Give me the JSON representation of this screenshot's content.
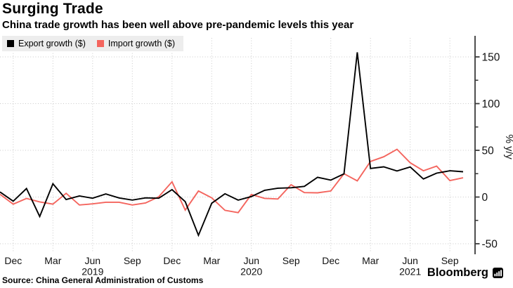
{
  "header": {
    "title": "Surging Trade",
    "subtitle": "China trade growth has been well above pre-pandemic levels this year"
  },
  "legend": [
    {
      "label": "Export growth ($)",
      "color": "#000000"
    },
    {
      "label": "Import growth ($)",
      "color": "#f4655e"
    }
  ],
  "source": {
    "text": "Source: China General Administration of Customs"
  },
  "branding": {
    "name": "Bloomberg",
    "icon": "bloomberg-bars-icon"
  },
  "chart_data": {
    "type": "line",
    "title": "Surging Trade",
    "ylabel": "% y/y",
    "x": [
      "Nov 2018",
      "Dec 2018",
      "Jan 2019",
      "Feb 2019",
      "Mar 2019",
      "Apr 2019",
      "May 2019",
      "Jun 2019",
      "Jul 2019",
      "Aug 2019",
      "Sep 2019",
      "Oct 2019",
      "Nov 2019",
      "Dec 2019",
      "Jan 2020",
      "Feb 2020",
      "Mar 2020",
      "Apr 2020",
      "May 2020",
      "Jun 2020",
      "Jul 2020",
      "Aug 2020",
      "Sep 2020",
      "Oct 2020",
      "Nov 2020",
      "Dec 2020",
      "Jan 2021",
      "Feb 2021",
      "Mar 2021",
      "Apr 2021",
      "May 2021",
      "Jun 2021",
      "Jul 2021",
      "Aug 2021",
      "Sep 2021",
      "Oct 2021"
    ],
    "series": [
      {
        "name": "Export growth ($)",
        "color": "#000000",
        "values": [
          5.4,
          -4.4,
          9.1,
          -20.8,
          14.2,
          -2.7,
          1.1,
          -1.3,
          3.3,
          -1.0,
          -3.2,
          -0.9,
          -1.3,
          7.9,
          -5.0,
          -41.0,
          -6.6,
          3.5,
          -3.3,
          0.5,
          7.2,
          9.5,
          9.9,
          11.4,
          21.1,
          18.1,
          24.8,
          154.9,
          30.6,
          32.3,
          27.9,
          32.2,
          19.3,
          25.6,
          28.1,
          27.1
        ]
      },
      {
        "name": "Import growth ($)",
        "color": "#f4655e",
        "values": [
          2.9,
          -7.6,
          -1.5,
          -5.2,
          -7.6,
          4.0,
          -8.5,
          -7.3,
          -5.6,
          -5.6,
          -8.5,
          -6.4,
          0.3,
          16.3,
          -14.0,
          6.5,
          -0.9,
          -14.2,
          -16.7,
          2.7,
          -1.4,
          -2.1,
          13.2,
          4.7,
          4.5,
          6.5,
          25.0,
          17.3,
          38.1,
          43.1,
          51.1,
          36.7,
          28.1,
          33.1,
          17.6,
          20.6
        ]
      }
    ],
    "yticks": [
      -50,
      0,
      50,
      100,
      150
    ],
    "yticks_minor": [
      -25,
      25,
      75,
      125
    ],
    "ylim": [
      -55,
      160
    ],
    "xticks": [
      {
        "index": 1,
        "label": "Dec"
      },
      {
        "index": 4,
        "label": "Mar"
      },
      {
        "index": 7,
        "label": "Jun"
      },
      {
        "index": 10,
        "label": "Sep"
      },
      {
        "index": 13,
        "label": "Dec"
      },
      {
        "index": 16,
        "label": "Mar"
      },
      {
        "index": 19,
        "label": "Jun"
      },
      {
        "index": 22,
        "label": "Sep"
      },
      {
        "index": 25,
        "label": "Dec"
      },
      {
        "index": 28,
        "label": "Mar"
      },
      {
        "index": 31,
        "label": "Jun"
      },
      {
        "index": 34,
        "label": "Sep"
      }
    ],
    "year_labels": [
      {
        "index": 7,
        "label": "2019"
      },
      {
        "index": 19,
        "label": "2020"
      },
      {
        "index": 31,
        "label": "2021"
      }
    ],
    "grid": true,
    "legend_position": "top-left",
    "axis_side": "right"
  }
}
